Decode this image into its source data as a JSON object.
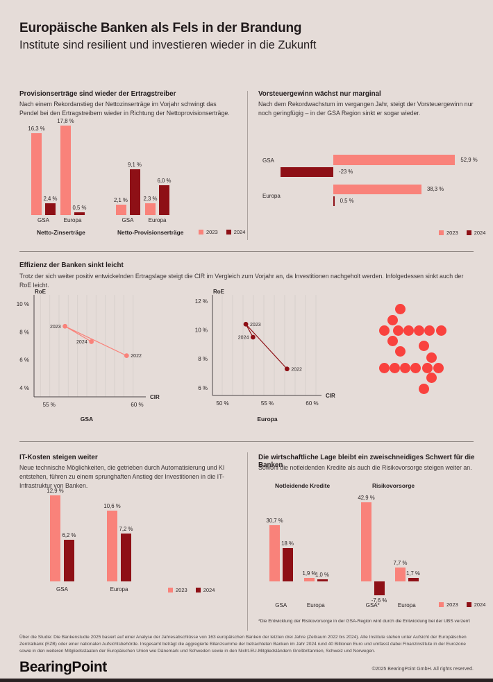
{
  "header": {
    "title": "Europäische Banken als Fels in der Brandung",
    "subtitle": "Institute sind resilient und investieren wieder in die Zukunft"
  },
  "colors": {
    "background": "#e5dcd8",
    "series_2023": "#f9827a",
    "series_2024": "#8e1016",
    "accent_red": "#f9423e",
    "axis": "#4c4546",
    "gridline": "#d8d0cc",
    "text_dark": "#2b2526"
  },
  "sections": {
    "ertragstreiber": {
      "title": "Provisionserträge sind wieder der Ertragstreiber",
      "body": "Nach einem Rekordanstieg der Nettozinserträge im Vorjahr schwingt das Pendel bei den Ertragstreibern wieder in Richtung der Nettoprovisionserträge."
    },
    "vorsteuergewinn": {
      "title": "Vorsteuergewinn wächst nur marginal",
      "body": "Nach dem Rekordwachstum im vergangen Jahr, steigt der Vorsteuergewinn nur noch geringfügig – in der GSA Region sinkt er sogar wieder."
    },
    "effizienz": {
      "title": "Effizienz der Banken sinkt leicht",
      "body": "Trotz der sich weiter positiv entwickelnden Ertragslage steigt die CIR im Vergleich zum Vorjahr an, da Investitionen nachgeholt werden. Infolgedessen sinkt auch der RoE leicht."
    },
    "it_kosten": {
      "title": "IT-Kosten steigen weiter",
      "body": "Neue technische Möglichkeiten, die getrieben durch Automatisierung und KI entstehen, führen zu einem sprunghaften Anstieg der Investitionen in die IT-Infrastruktur von Banken."
    },
    "lage": {
      "title": "Die wirtschaftliche Lage bleibt ein zweischneidiges Schwert für die Banken",
      "body": "Sowohl die notleidenden Kredite als auch die Risikovorsorge steigen weiter an."
    }
  },
  "chart_data": [
    {
      "id": "ertragstreiber",
      "type": "bar",
      "unit": "%",
      "legend": [
        "2023",
        "2024"
      ],
      "groups": [
        {
          "title": "Netto-Zinserträge",
          "clusters": [
            {
              "category": "GSA",
              "bars": [
                {
                  "series": "2023",
                  "value": 16.3,
                  "label": "16,3 %"
                },
                {
                  "series": "2024",
                  "value": 2.4,
                  "label": "2,4 %"
                }
              ]
            },
            {
              "category": "Europa",
              "bars": [
                {
                  "series": "2023",
                  "value": 17.8,
                  "label": "17,8 %"
                },
                {
                  "series": "2024",
                  "value": 0.5,
                  "label": "0,5 %"
                }
              ]
            }
          ]
        },
        {
          "title": "Netto-Provisionserträge",
          "clusters": [
            {
              "category": "GSA",
              "bars": [
                {
                  "series": "2023",
                  "value": 2.1,
                  "label": "2,1 %"
                },
                {
                  "series": "2024",
                  "value": 9.1,
                  "label": "9,1 %"
                }
              ]
            },
            {
              "category": "Europa",
              "bars": [
                {
                  "series": "2023",
                  "value": 2.3,
                  "label": "2,3 %"
                },
                {
                  "series": "2024",
                  "value": 6.0,
                  "label": "6,0 %"
                }
              ]
            }
          ]
        }
      ]
    },
    {
      "id": "vorsteuergewinn",
      "type": "bar-horizontal",
      "unit": "%",
      "legend": [
        "2023",
        "2024"
      ],
      "rows": [
        {
          "category": "GSA",
          "bars": [
            {
              "series": "2023",
              "value": 52.9,
              "label": "52,9 %"
            },
            {
              "series": "2024",
              "value": -23,
              "label": "-23 %"
            }
          ]
        },
        {
          "category": "Europa",
          "bars": [
            {
              "series": "2023",
              "value": 38.3,
              "label": "38,3 %"
            },
            {
              "series": "2024",
              "value": 0.5,
              "label": "0,5 %"
            }
          ]
        }
      ]
    },
    {
      "id": "cir_roe_gsa",
      "type": "scatter",
      "region": "GSA",
      "xlabel": "CIR",
      "ylabel": "RoE",
      "xticks": [
        {
          "label": "55 %",
          "value": 55
        },
        {
          "label": "60 %",
          "value": 60
        }
      ],
      "yticks": [
        {
          "label": "10 %",
          "value": 10
        },
        {
          "label": "8 %",
          "value": 8
        },
        {
          "label": "6 %",
          "value": 6
        },
        {
          "label": "4 %",
          "value": 4
        }
      ],
      "points": [
        {
          "year": "2022",
          "cir": 59.4,
          "roe": 6.3,
          "label_side": "right"
        },
        {
          "year": "2023",
          "cir": 55.9,
          "roe": 8.4,
          "label_side": "left"
        },
        {
          "year": "2024",
          "cir": 57.4,
          "roe": 7.3,
          "label_side": "left"
        }
      ]
    },
    {
      "id": "cir_roe_europa",
      "type": "scatter",
      "region": "Europa",
      "xlabel": "CIR",
      "ylabel": "RoE",
      "xticks": [
        {
          "label": "50 %",
          "value": 50
        },
        {
          "label": "55 %",
          "value": 55
        },
        {
          "label": "60 %",
          "value": 60
        }
      ],
      "yticks": [
        {
          "label": "12 %",
          "value": 12
        },
        {
          "label": "10 %",
          "value": 10
        },
        {
          "label": "8 %",
          "value": 8
        },
        {
          "label": "6 %",
          "value": 6
        }
      ],
      "points": [
        {
          "year": "2022",
          "cir": 57.2,
          "roe": 7.3,
          "label_side": "right"
        },
        {
          "year": "2023",
          "cir": 52.6,
          "roe": 10.4,
          "label_side": "right"
        },
        {
          "year": "2024",
          "cir": 53.4,
          "roe": 9.5,
          "label_side": "left"
        }
      ]
    },
    {
      "id": "it_kosten",
      "type": "bar",
      "unit": "%",
      "legend": [
        "2023",
        "2024"
      ],
      "groups": [
        {
          "title": "",
          "clusters": [
            {
              "category": "GSA",
              "bars": [
                {
                  "series": "2023",
                  "value": 12.9,
                  "label": "12,9 %"
                },
                {
                  "series": "2024",
                  "value": 6.2,
                  "label": "6,2 %"
                }
              ]
            },
            {
              "category": "Europa",
              "bars": [
                {
                  "series": "2023",
                  "value": 10.6,
                  "label": "10,6 %"
                },
                {
                  "series": "2024",
                  "value": 7.2,
                  "label": "7,2 %"
                }
              ]
            }
          ]
        }
      ]
    },
    {
      "id": "lage",
      "type": "bar",
      "unit": "%",
      "legend": [
        "2023",
        "2024"
      ],
      "footnote": "*Die Entwicklung der Risikovorsorge in der GSA-Region wird durch die Entwicklung bei der UBS verzerrt",
      "groups": [
        {
          "title": "Notleidende Kredite",
          "clusters": [
            {
              "category": "GSA",
              "bars": [
                {
                  "series": "2023",
                  "value": 30.7,
                  "label": "30,7 %"
                },
                {
                  "series": "2024",
                  "value": 18,
                  "label": "18 %"
                }
              ]
            },
            {
              "category": "Europa",
              "bars": [
                {
                  "series": "2023",
                  "value": 1.9,
                  "label": "1,9 %"
                },
                {
                  "series": "2024",
                  "value": 1.0,
                  "label": "1,0 %"
                }
              ]
            }
          ]
        },
        {
          "title": "Risikovorsorge",
          "clusters": [
            {
              "category": "GSA*",
              "bars": [
                {
                  "series": "2023",
                  "value": 42.9,
                  "label": "42,9 %"
                },
                {
                  "series": "2024",
                  "value": -7.6,
                  "label": "-7,6 %"
                }
              ]
            },
            {
              "category": "Europa",
              "bars": [
                {
                  "series": "2023",
                  "value": 7.7,
                  "label": "7,7 %"
                },
                {
                  "series": "2024",
                  "value": 1.7,
                  "label": "1,7 %"
                }
              ]
            }
          ]
        }
      ]
    }
  ],
  "footer": {
    "about": "Über die Studie: Die Bankenstudie 2025 basiert auf einer Analyse der Jahresabschlüsse von 163 europäischen Banken der letzten drei Jahre (Zeitraum 2022 bis 2024). Alle Institute stehen unter Aufsicht der Europäischen Zentralbank (EZB) oder einer nationalen Aufsichtsbehörde. Insgesamt beträgt die aggregierte Bilanzsumme der betrachteten Banken im Jahr 2024 rund 40 Billionen Euro und umfasst dabei Finanzinstitute in der Eurozone sowie in den weiteren Mitgliedsstaaten der Europäischen Union wie Dänemark und Schweden sowie in den Nicht-EU-Mitgliedsländern Großbritannien, Schweiz und Norwegen.",
    "logo": "BearingPoint",
    "copyright": "©2025 BearingPoint GmbH. All rights reserved."
  }
}
